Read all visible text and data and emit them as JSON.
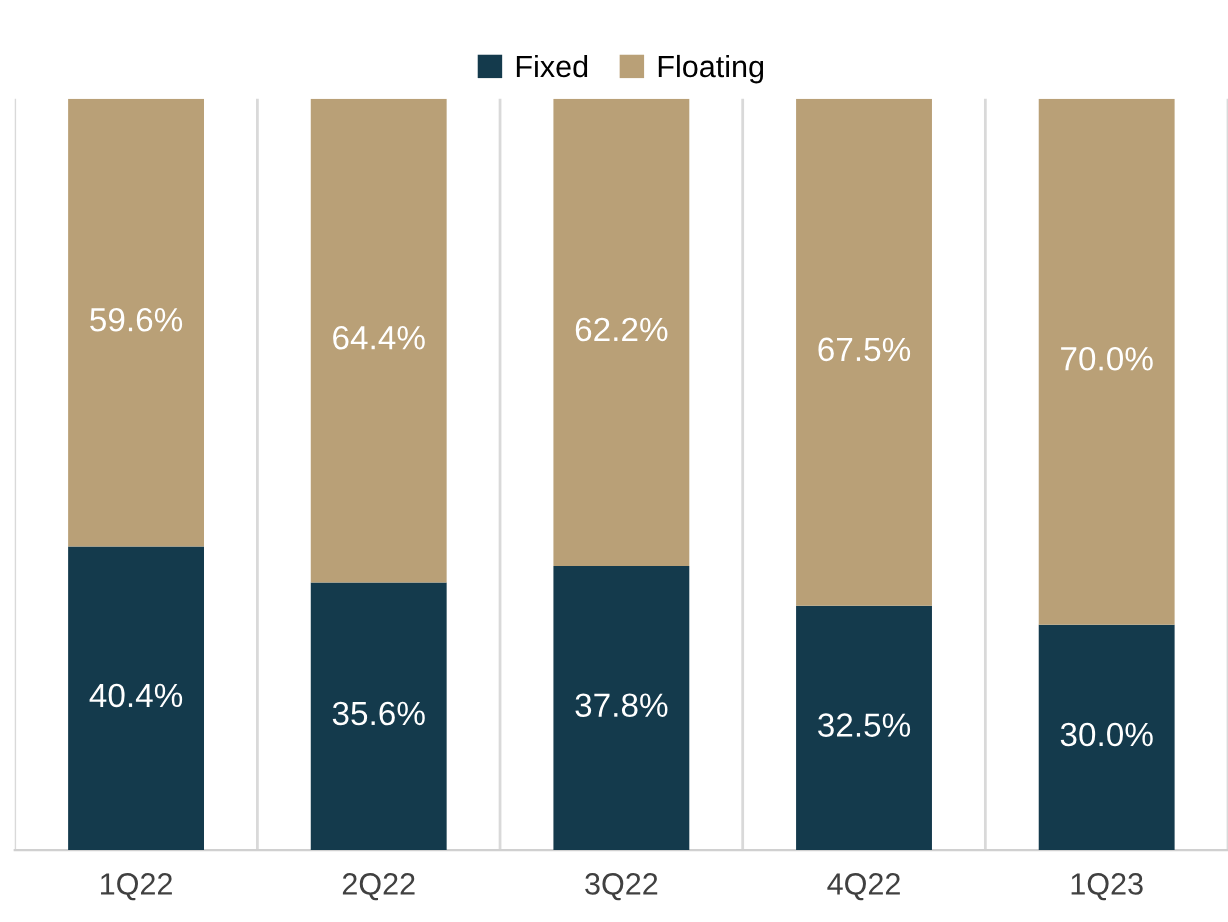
{
  "chart_data": {
    "type": "bar",
    "stacked": true,
    "categories": [
      "1Q22",
      "2Q22",
      "3Q22",
      "4Q22",
      "1Q23"
    ],
    "series": [
      {
        "name": "Fixed",
        "color": "#143a4c",
        "values": [
          40.4,
          35.6,
          37.8,
          32.5,
          30.0
        ],
        "value_labels": [
          "40.4%",
          "35.6%",
          "37.8%",
          "32.5%",
          "30.0%"
        ]
      },
      {
        "name": "Floating",
        "color": "#b9a077",
        "values": [
          59.6,
          64.4,
          62.2,
          67.5,
          70.0
        ],
        "value_labels": [
          "59.6%",
          "64.4%",
          "62.2%",
          "67.5%",
          "70.0%"
        ]
      }
    ],
    "ylim": [
      0,
      100
    ],
    "tick_labels": "x",
    "grid": "x",
    "legend": "top"
  }
}
